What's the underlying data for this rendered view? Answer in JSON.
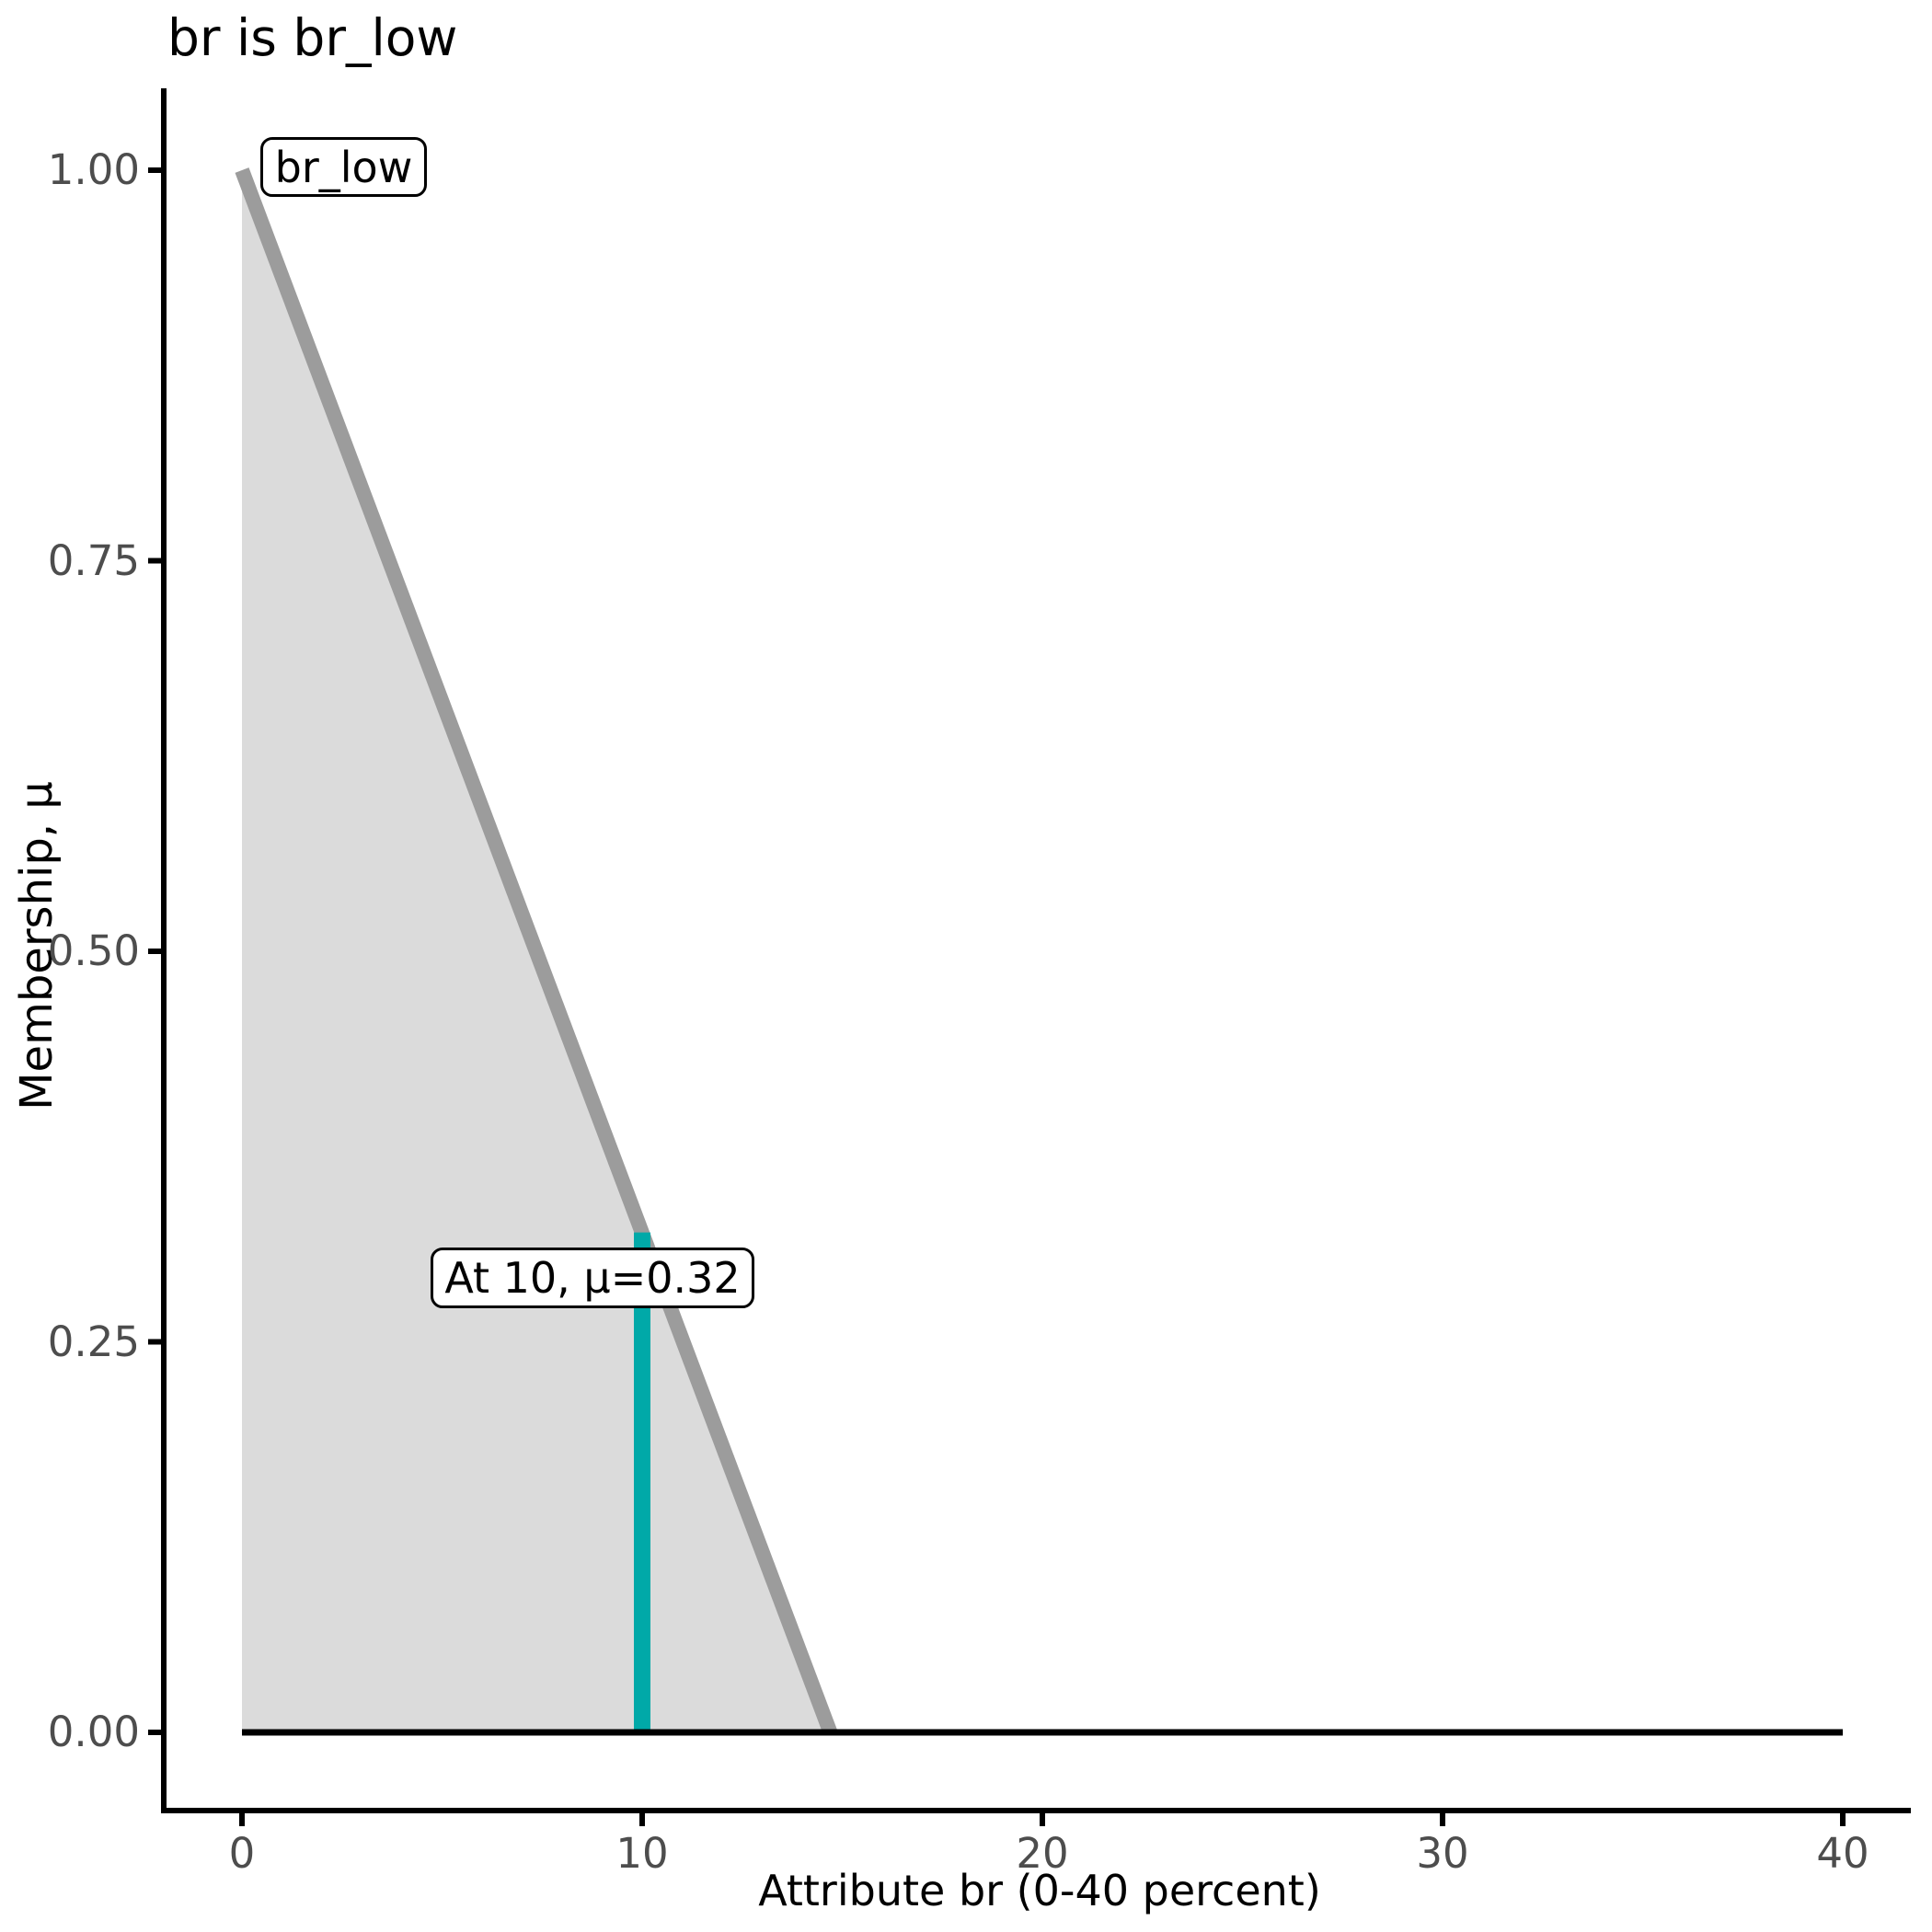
{
  "chart_data": {
    "type": "area",
    "title": "br is br_low",
    "xlabel": "Attribute br (0-40 percent)",
    "ylabel": "Membership, μ",
    "xlim": [
      0,
      40
    ],
    "ylim": [
      0,
      1
    ],
    "grid": false,
    "legend": "none",
    "x_ticks": [
      0,
      10,
      20,
      30,
      40
    ],
    "x_tick_labels": [
      "0",
      "10",
      "20",
      "30",
      "40"
    ],
    "y_ticks": [
      0.0,
      0.25,
      0.5,
      0.75,
      1.0
    ],
    "y_tick_labels": [
      "0.00",
      "0.25",
      "0.50",
      "0.75",
      "1.00"
    ],
    "series": [
      {
        "name": "br_low membership function",
        "type": "area",
        "line_color": "#9C9C9C",
        "fill_color": "#DBDBDB",
        "line_width": 16,
        "points": [
          [
            0,
            1.0
          ],
          [
            14.7,
            0.0
          ]
        ]
      },
      {
        "name": "zero baseline",
        "type": "line",
        "line_color": "#000000",
        "line_width": 7,
        "points": [
          [
            0,
            0
          ],
          [
            40,
            0
          ]
        ]
      },
      {
        "name": "evaluation marker",
        "type": "vline",
        "line_color": "#00A9A8",
        "line_width": 18,
        "at_x": 10,
        "mu": 0.32,
        "points": [
          [
            10,
            0
          ],
          [
            10,
            0.32
          ]
        ]
      }
    ],
    "annotations": {
      "set_label": {
        "text": "br_low",
        "x": 2.5,
        "mu": 1.0
      },
      "point_label": {
        "text": "At 10, μ=0.32",
        "x": 10,
        "mu": 0.29
      }
    }
  },
  "colors": {
    "marker_teal": "#00A9A8",
    "membership_line_gray": "#9C9C9C",
    "membership_fill_gray": "#DBDBDB",
    "tick_label_gray": "#4D4D4D",
    "axis_black": "#000000",
    "background": "#FFFFFF"
  }
}
